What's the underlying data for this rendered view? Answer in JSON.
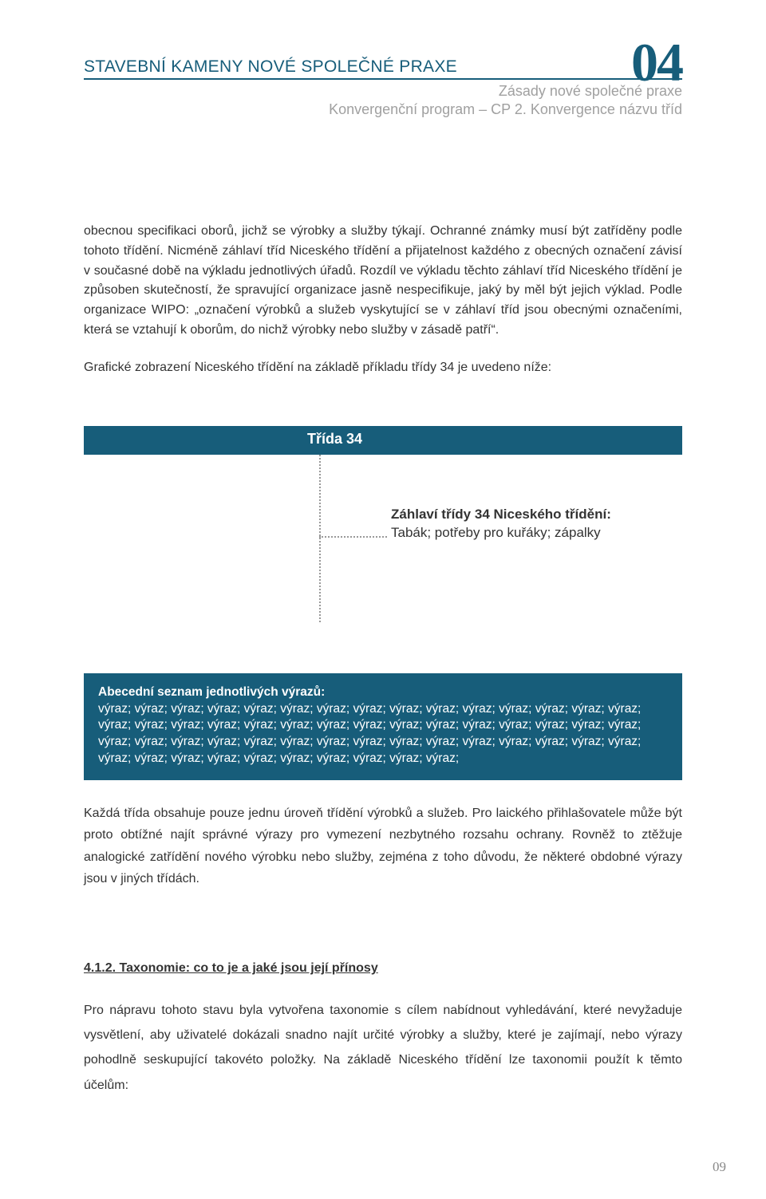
{
  "header": {
    "chapter_number": "04",
    "title": "STAVEBNÍ KAMENY NOVÉ SPOLEČNÉ PRAXE",
    "subtitle1": "Zásady nové společné praxe",
    "subtitle2": "Konvergenční program – CP 2. Konvergence názvu tříd",
    "title_color": "#175d7a",
    "subtitle_color": "#a0a0a0"
  },
  "paragraphs": {
    "p1": "obecnou specifikaci oborů, jichž se výrobky a služby týkají. Ochranné známky musí být zatříděny podle tohoto třídění. Nicméně záhlaví tříd Niceského třídění a přijatelnost každého z obecných označení závisí v současné době na výkladu jednotlivých úřadů. Rozdíl ve výkladu těchto záhlaví tříd Niceského třídění je způsoben skutečností, že spravující organizace jasně nespecifikuje, jaký by měl být jejich výklad. Podle organizace WIPO: „označení výrobků a služeb vyskytující se v záhlaví tříd jsou obecnými označeními, která se vztahují k oborům, do nichž výrobky nebo služby v zásadě patří“.",
    "p2": "Grafické zobrazení Niceského třídění na základě příkladu třídy 34 je uvedeno níže:",
    "p3": "Každá třída obsahuje pouze jednu úroveň třídění výrobků a služeb. Pro laického přihlašovatele může být proto obtížné najít správné výrazy pro vymezení nezbytného rozsahu ochrany. Rovněž to ztěžuje analogické zatřídění nového výrobku nebo služby, zejména z toho důvodu, že některé obdobné výrazy jsou v jiných třídách.",
    "p4": "Pro nápravu tohoto stavu byla vytvořena taxonomie s cílem nabídnout vyhledávání, které nevyžaduje vysvětlení, aby uživatelé dokázali snadno najít určité výrobky a služby, které je zajímají, nebo výrazy pohodlně seskupující takovéto položky. Na základě Niceského třídění lze taxonomii použít k těmto účelům:"
  },
  "diagram": {
    "class_label": "Třída 34",
    "heading_bold": "Záhlaví třídy 34 Niceského třídění:",
    "heading_rest": " Tabák; potřeby pro kuřáky; zápalky",
    "bar_color": "#175d7a",
    "dotted_color": "#999999"
  },
  "alpha_block": {
    "title": "Abecední seznam jednotlivých výrazů:",
    "lines": [
      "výraz; výraz; výraz; výraz; výraz; výraz; výraz; výraz; výraz; výraz; výraz; výraz; výraz; výraz; výraz;",
      "výraz; výraz; výraz; výraz; výraz; výraz; výraz; výraz; výraz; výraz; výraz; výraz; výraz; výraz; výraz;",
      "výraz; výraz; výraz; výraz; výraz; výraz; výraz; výraz; výraz; výraz; výraz; výraz; výraz; výraz; výraz;",
      "výraz; výraz; výraz; výraz; výraz; výraz; výraz; výraz; výraz; výraz;"
    ],
    "background_color": "#175d7a",
    "text_color": "#ffffff"
  },
  "section": {
    "heading": "4.1.2. Taxonomie: co to je a jaké jsou její přínosy"
  },
  "page_number": "09",
  "colors": {
    "body_text": "#333333",
    "page_bg": "#ffffff",
    "page_number_color": "#888888"
  }
}
